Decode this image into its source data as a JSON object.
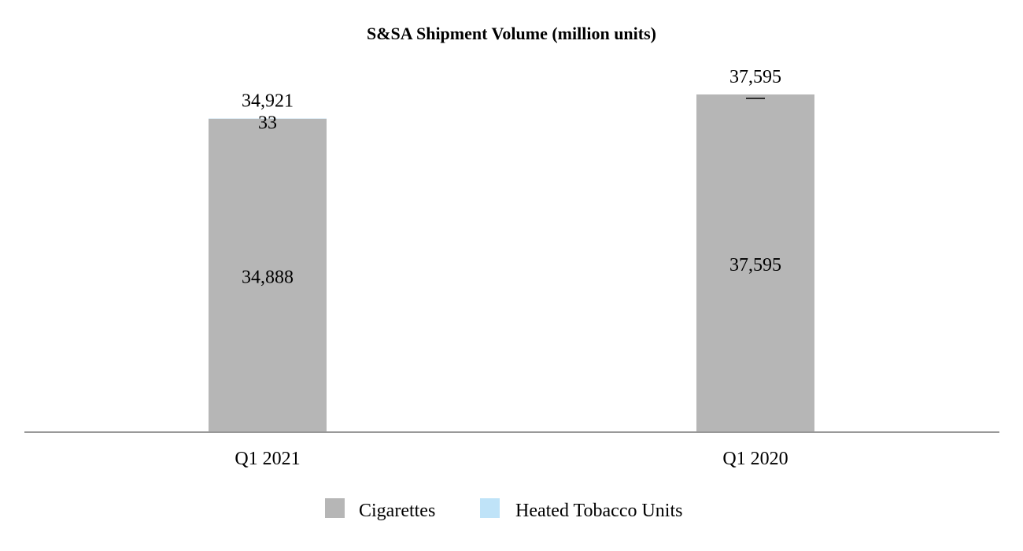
{
  "chart_data": {
    "type": "bar",
    "stacked": true,
    "title": "S&SA Shipment Volume (million units)",
    "xlabel": "",
    "ylabel": "",
    "categories": [
      "Q1 2021",
      "Q1 2020"
    ],
    "series": [
      {
        "name": "Cigarettes",
        "color": "#b6b6b6",
        "values": [
          34888,
          37595
        ],
        "labels": [
          "34,888",
          "37,595"
        ]
      },
      {
        "name": "Heated Tobacco Units",
        "color": "#bfe3f8",
        "values": [
          33,
          0
        ],
        "labels": [
          "33",
          "—"
        ]
      }
    ],
    "totals": [
      34921,
      37595
    ],
    "total_labels": [
      "34,921",
      "37,595"
    ],
    "ylim": [
      0,
      37595
    ],
    "grid": false,
    "legend_position": "bottom-center",
    "axis_color": "#999999"
  }
}
